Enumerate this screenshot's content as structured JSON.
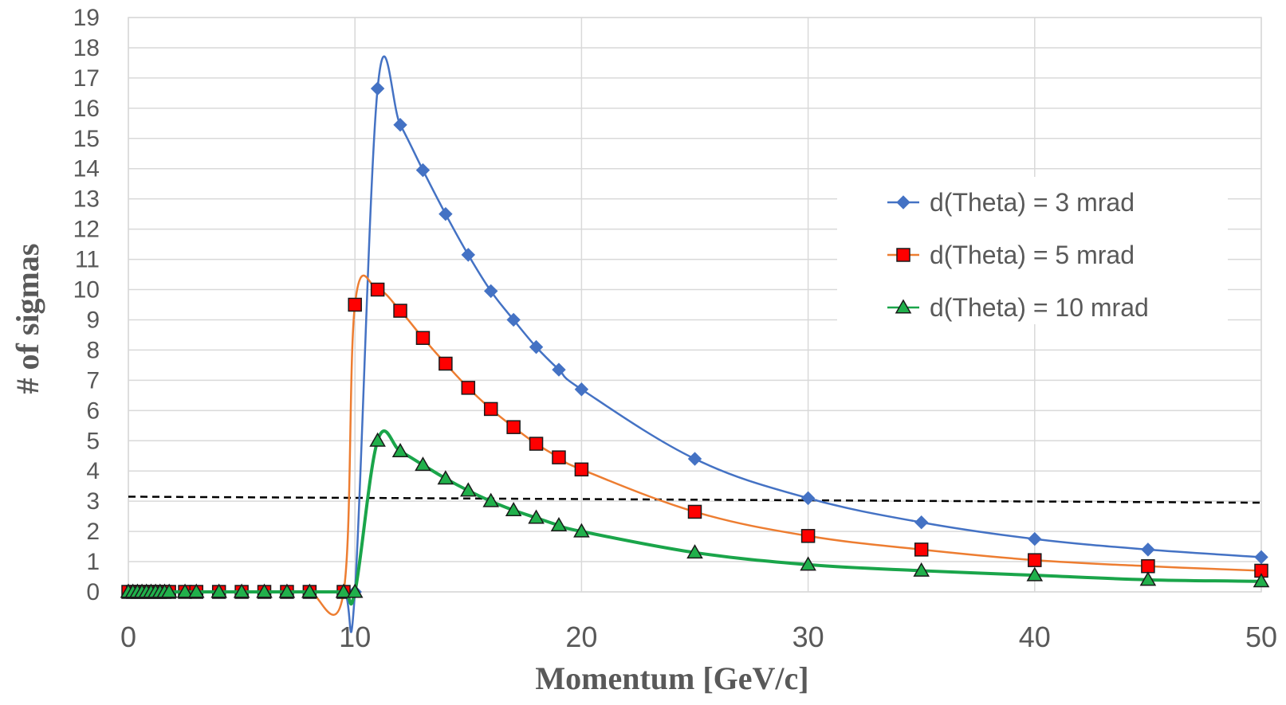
{
  "chart_data": {
    "type": "line",
    "title": "",
    "xlabel": "Momentum [GeV/c]",
    "ylabel": "# of sigmas",
    "xlim": [
      0,
      50
    ],
    "ylim": [
      0,
      19
    ],
    "x_ticks": [
      "0",
      "10",
      "20",
      "30",
      "40",
      "50"
    ],
    "y_ticks": [
      "0",
      "1",
      "2",
      "3",
      "4",
      "5",
      "6",
      "7",
      "8",
      "9",
      "10",
      "11",
      "12",
      "13",
      "14",
      "15",
      "16",
      "17",
      "18",
      "19"
    ],
    "grid": true,
    "legend_position": "right",
    "series": [
      {
        "name": "d(Theta) = 3 mrad",
        "color": "#4472C4",
        "marker": "diamond",
        "x": [
          0,
          0.2,
          0.4,
          0.6,
          0.8,
          1.0,
          1.2,
          1.4,
          1.6,
          1.8,
          2.5,
          3,
          4,
          5,
          6,
          7,
          8,
          9.5,
          10,
          11,
          12,
          13,
          14,
          15,
          16,
          17,
          18,
          19,
          20,
          25,
          30,
          35,
          40,
          45,
          50
        ],
        "y": [
          0,
          0,
          0,
          0,
          0,
          0,
          0,
          0,
          0,
          0,
          0,
          0,
          0,
          0,
          0,
          0,
          0,
          0,
          0,
          16.65,
          15.45,
          13.95,
          12.5,
          11.15,
          9.95,
          9.0,
          8.1,
          7.35,
          6.7,
          4.4,
          3.1,
          2.3,
          1.75,
          1.4,
          1.15
        ]
      },
      {
        "name": "d(Theta) = 5 mrad",
        "color": "#ED7D31",
        "marker_fill": "#FF0000",
        "marker": "square",
        "x": [
          0,
          0.2,
          0.4,
          0.6,
          0.8,
          1.0,
          1.2,
          1.4,
          1.6,
          1.8,
          2.5,
          3,
          4,
          5,
          6,
          7,
          8,
          9.5,
          10,
          11,
          12,
          13,
          14,
          15,
          16,
          17,
          18,
          19,
          20,
          25,
          30,
          35,
          40,
          45,
          50
        ],
        "y": [
          0,
          0,
          0,
          0,
          0,
          0,
          0,
          0,
          0,
          0,
          0,
          0,
          0,
          0,
          0,
          0,
          0,
          0,
          9.5,
          10.0,
          9.3,
          8.4,
          7.55,
          6.75,
          6.05,
          5.45,
          4.9,
          4.45,
          4.05,
          2.65,
          1.85,
          1.4,
          1.05,
          0.85,
          0.7
        ]
      },
      {
        "name": "d(Theta) = 10 mrad",
        "color": "#1AA54A",
        "marker_fill": "#21B04B",
        "marker": "triangle",
        "x": [
          0,
          0.2,
          0.4,
          0.6,
          0.8,
          1.0,
          1.2,
          1.4,
          1.6,
          1.8,
          2.5,
          3,
          4,
          5,
          6,
          7,
          8,
          9.5,
          10,
          11,
          12,
          13,
          14,
          15,
          16,
          17,
          18,
          19,
          20,
          25,
          30,
          35,
          40,
          45,
          50
        ],
        "y": [
          0,
          0,
          0,
          0,
          0,
          0,
          0,
          0,
          0,
          0,
          0,
          0,
          0,
          0,
          0,
          0,
          0,
          0,
          0,
          5.0,
          4.65,
          4.2,
          3.75,
          3.35,
          3.0,
          2.7,
          2.45,
          2.2,
          2.0,
          1.3,
          0.9,
          0.7,
          0.55,
          0.4,
          0.35
        ]
      }
    ],
    "reference_line": {
      "style": "dashed",
      "color": "#000000",
      "x": [
        0,
        50
      ],
      "y": [
        3.15,
        2.95
      ]
    }
  }
}
